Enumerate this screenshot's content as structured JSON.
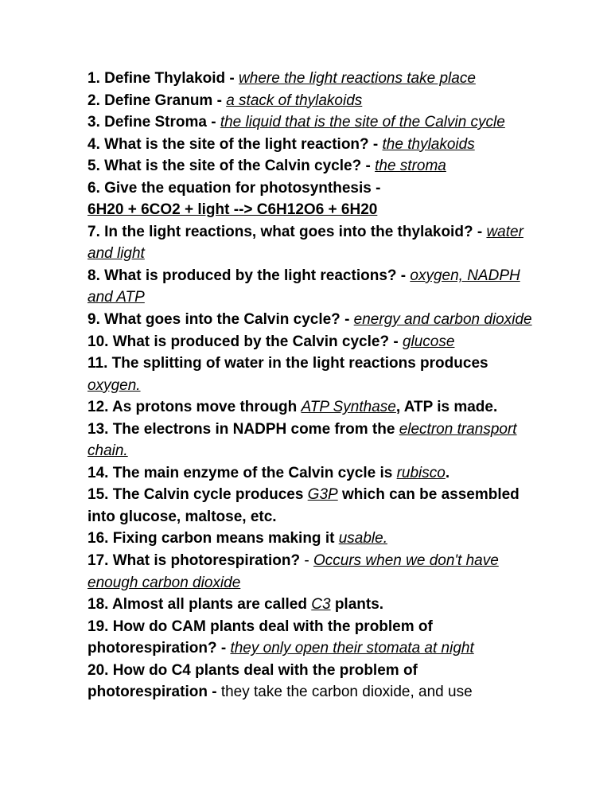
{
  "items": [
    {
      "num": "1.",
      "q": "Define Thylakoid - ",
      "a": "where the light reactions take place",
      "aStyle": "ua"
    },
    {
      "num": "2.",
      "q": "Define Granum - ",
      "a": "a stack of thylakoids",
      "aStyle": "ua"
    },
    {
      "num": "3.",
      "q": "Define Stroma - ",
      "a": "the liquid that is the site of the Calvin cycle",
      "aStyle": "ua"
    },
    {
      "num": "4.",
      "q": "What is the site of the light reaction? - ",
      "a": "the thylakoids",
      "aStyle": "ua"
    },
    {
      "num": "5.",
      "q": "What is the site of the Calvin cycle? - ",
      "a": "the stroma",
      "aStyle": "ua"
    },
    {
      "num": "6.",
      "q": "Give the equation for photosynthesis -"
    },
    {
      "full": "6H20 + 6CO2 + light --> C6H12O6 + 6H20",
      "fullStyle": "ub"
    },
    {
      "num": "7.",
      "q": "In the light reactions, what goes into the thylakoid? -  ",
      "a": "water and light",
      "aStyle": "ua"
    },
    {
      "num": "8.",
      "q": "What is produced by the light reactions? - ",
      "a": "oxygen, NADPH and ATP",
      "aStyle": "ua"
    },
    {
      "num": "9.",
      "q": "What goes into the Calvin cycle? - ",
      "a": "energy and carbon dioxide",
      "aStyle": "ua"
    },
    {
      "num": "10.",
      "q": "What is produced by the Calvin cycle? - ",
      "a": "glucose",
      "aStyle": "ua"
    },
    {
      "num": "11.",
      "q": "The splitting of water in the light reactions produces ",
      "a": "oxygen.",
      "aStyle": "ua"
    },
    {
      "num": "12.",
      "q": "As protons move through ",
      "a": "ATP Synthase",
      "aStyle": "ua",
      "tail": ", ATP is made."
    },
    {
      "num": "13.",
      "q": "The electrons in NADPH come from the ",
      "a": "electron transport chain.",
      "aStyle": "ua"
    },
    {
      "num": "14.",
      "q": "The main enzyme of the Calvin cycle is ",
      "a": "rubisco",
      "aStyle": "ua",
      "tail": "."
    },
    {
      "num": "15.",
      "q": "The Calvin cycle produces ",
      "a": "G3P",
      "aStyle": "ua",
      "tail": " which can be assembled into glucose, maltose, etc."
    },
    {
      "num": "16.",
      "q": "Fixing carbon means making it ",
      "a": "usable.",
      "aStyle": "ua"
    },
    {
      "num": "17.",
      "q": "What is photorespiration?",
      "sep": " - ",
      "a": "Occurs when we don't have enough carbon dioxide",
      "aStyle": "ua"
    },
    {
      "num": "18.",
      "q": "Almost all plants are called ",
      "a": "C3",
      "aStyle": "ua",
      "tail": " plants."
    },
    {
      "num": "19.",
      "q": "How do CAM plants deal with the problem of photorespiration? - ",
      "a": "they only open their stomata at night",
      "aStyle": "ua"
    },
    {
      "num": "20.",
      "q": "How do C4 plants deal with the problem of photorespiration - ",
      "plain": "they take the carbon dioxide, and use"
    }
  ],
  "colors": {
    "text": "#000000",
    "bg": "#ffffff"
  }
}
